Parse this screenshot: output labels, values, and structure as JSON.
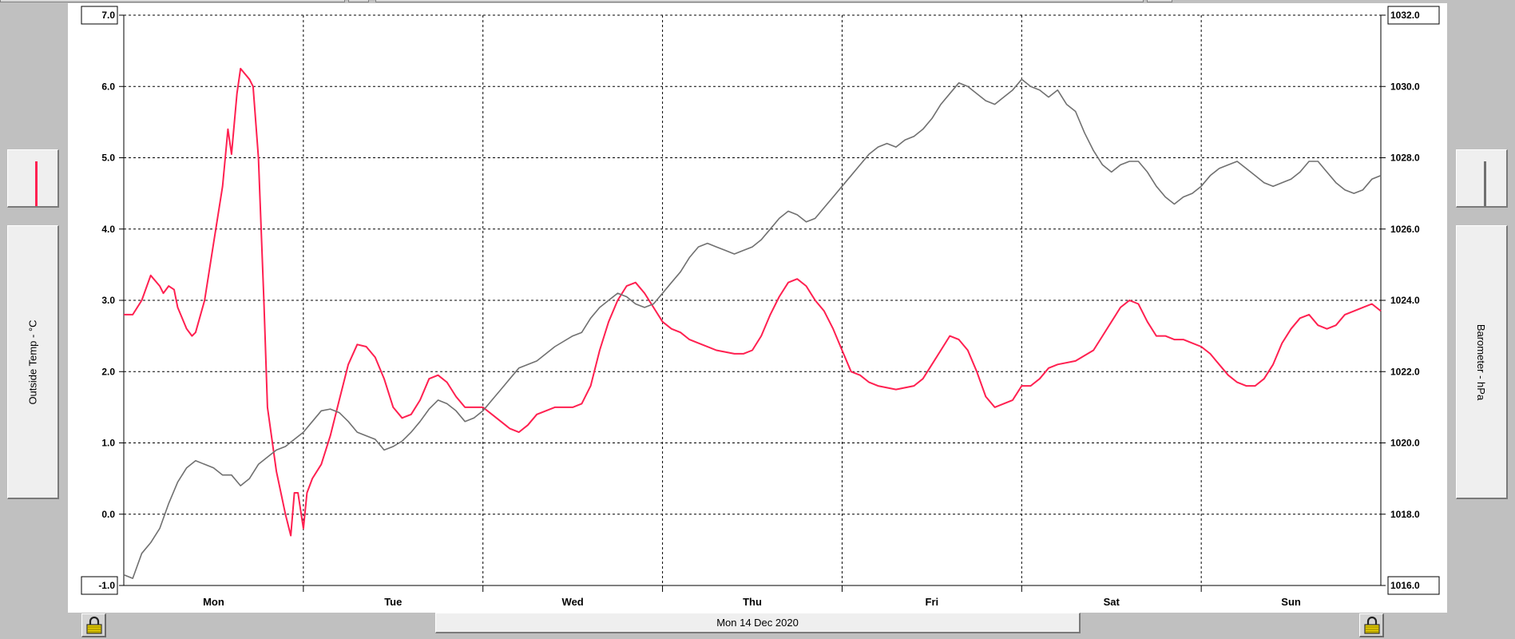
{
  "window": {
    "date_label": "Mon 14 Dec 2020"
  },
  "left_axis": {
    "label": "Outside Temp - °C",
    "ticks": [
      "-1.0",
      "0.0",
      "1.0",
      "2.0",
      "3.0",
      "4.0",
      "5.0",
      "6.0",
      "7.0"
    ]
  },
  "right_axis": {
    "label": "Barometer - hPa",
    "ticks": [
      "1016.0",
      "1018.0",
      "1020.0",
      "1022.0",
      "1024.0",
      "1026.0",
      "1028.0",
      "1030.0",
      "1032.0"
    ]
  },
  "colors": {
    "temp": "#ff2050",
    "barometer": "#707070",
    "grid": "#000000",
    "panel_bg": "#c0c0c0"
  },
  "icons": {
    "lock_left": "lock-icon",
    "lock_right": "lock-icon"
  },
  "chart_data": {
    "type": "line",
    "categories": [
      "Mon",
      "Tue",
      "Wed",
      "Thu",
      "Fri",
      "Sat",
      "Sun"
    ],
    "x_unit": "day",
    "xlim": [
      0,
      7
    ],
    "grid": true,
    "y_left": {
      "label": "Outside Temp - °C",
      "ylim": [
        -1.0,
        7.0
      ]
    },
    "y_right": {
      "label": "Barometer - hPa",
      "ylim": [
        1016.0,
        1032.0
      ]
    },
    "series": [
      {
        "name": "Outside Temp - °C",
        "axis": "left",
        "color": "#ff2050",
        "points": [
          [
            0,
            2.8
          ],
          [
            0.05,
            2.8
          ],
          [
            0.1,
            3.0
          ],
          [
            0.15,
            3.35
          ],
          [
            0.2,
            3.2
          ],
          [
            0.22,
            3.1
          ],
          [
            0.25,
            3.2
          ],
          [
            0.28,
            3.15
          ],
          [
            0.3,
            2.9
          ],
          [
            0.35,
            2.6
          ],
          [
            0.38,
            2.5
          ],
          [
            0.4,
            2.55
          ],
          [
            0.45,
            3.0
          ],
          [
            0.5,
            3.8
          ],
          [
            0.55,
            4.6
          ],
          [
            0.58,
            5.4
          ],
          [
            0.6,
            5.05
          ],
          [
            0.63,
            5.9
          ],
          [
            0.65,
            6.25
          ],
          [
            0.7,
            6.1
          ],
          [
            0.72,
            6.0
          ],
          [
            0.75,
            5.0
          ],
          [
            0.78,
            3.0
          ],
          [
            0.8,
            1.5
          ],
          [
            0.85,
            0.6
          ],
          [
            0.9,
            0.0
          ],
          [
            0.93,
            -0.3
          ],
          [
            0.95,
            0.3
          ],
          [
            0.97,
            0.3
          ],
          [
            1.0,
            -0.2
          ],
          [
            1.02,
            0.3
          ],
          [
            1.05,
            0.5
          ],
          [
            1.1,
            0.7
          ],
          [
            1.15,
            1.1
          ],
          [
            1.2,
            1.6
          ],
          [
            1.25,
            2.1
          ],
          [
            1.3,
            2.38
          ],
          [
            1.35,
            2.35
          ],
          [
            1.4,
            2.2
          ],
          [
            1.45,
            1.9
          ],
          [
            1.5,
            1.5
          ],
          [
            1.55,
            1.35
          ],
          [
            1.6,
            1.4
          ],
          [
            1.65,
            1.6
          ],
          [
            1.7,
            1.9
          ],
          [
            1.75,
            1.95
          ],
          [
            1.8,
            1.85
          ],
          [
            1.85,
            1.65
          ],
          [
            1.9,
            1.5
          ],
          [
            1.95,
            1.5
          ],
          [
            2.0,
            1.5
          ],
          [
            2.05,
            1.4
          ],
          [
            2.1,
            1.3
          ],
          [
            2.15,
            1.2
          ],
          [
            2.2,
            1.15
          ],
          [
            2.25,
            1.25
          ],
          [
            2.3,
            1.4
          ],
          [
            2.4,
            1.5
          ],
          [
            2.5,
            1.5
          ],
          [
            2.55,
            1.55
          ],
          [
            2.6,
            1.8
          ],
          [
            2.65,
            2.3
          ],
          [
            2.7,
            2.7
          ],
          [
            2.75,
            3.0
          ],
          [
            2.8,
            3.2
          ],
          [
            2.85,
            3.25
          ],
          [
            2.9,
            3.1
          ],
          [
            2.95,
            2.9
          ],
          [
            3.0,
            2.7
          ],
          [
            3.05,
            2.6
          ],
          [
            3.1,
            2.55
          ],
          [
            3.15,
            2.45
          ],
          [
            3.2,
            2.4
          ],
          [
            3.3,
            2.3
          ],
          [
            3.4,
            2.25
          ],
          [
            3.45,
            2.25
          ],
          [
            3.5,
            2.3
          ],
          [
            3.55,
            2.5
          ],
          [
            3.6,
            2.8
          ],
          [
            3.65,
            3.05
          ],
          [
            3.7,
            3.25
          ],
          [
            3.75,
            3.3
          ],
          [
            3.8,
            3.2
          ],
          [
            3.85,
            3.0
          ],
          [
            3.9,
            2.85
          ],
          [
            3.95,
            2.6
          ],
          [
            4.0,
            2.3
          ],
          [
            4.05,
            2.0
          ],
          [
            4.1,
            1.95
          ],
          [
            4.15,
            1.85
          ],
          [
            4.2,
            1.8
          ],
          [
            4.3,
            1.75
          ],
          [
            4.4,
            1.8
          ],
          [
            4.45,
            1.9
          ],
          [
            4.5,
            2.1
          ],
          [
            4.55,
            2.3
          ],
          [
            4.6,
            2.5
          ],
          [
            4.65,
            2.45
          ],
          [
            4.7,
            2.3
          ],
          [
            4.75,
            2.0
          ],
          [
            4.8,
            1.65
          ],
          [
            4.85,
            1.5
          ],
          [
            4.9,
            1.55
          ],
          [
            4.95,
            1.6
          ],
          [
            5.0,
            1.8
          ],
          [
            5.05,
            1.8
          ],
          [
            5.1,
            1.9
          ],
          [
            5.15,
            2.05
          ],
          [
            5.2,
            2.1
          ],
          [
            5.3,
            2.15
          ],
          [
            5.4,
            2.3
          ],
          [
            5.45,
            2.5
          ],
          [
            5.5,
            2.7
          ],
          [
            5.55,
            2.9
          ],
          [
            5.6,
            3.0
          ],
          [
            5.65,
            2.95
          ],
          [
            5.7,
            2.7
          ],
          [
            5.75,
            2.5
          ],
          [
            5.8,
            2.5
          ],
          [
            5.85,
            2.45
          ],
          [
            5.9,
            2.45
          ],
          [
            5.95,
            2.4
          ],
          [
            6.0,
            2.35
          ],
          [
            6.05,
            2.25
          ],
          [
            6.1,
            2.1
          ],
          [
            6.15,
            1.95
          ],
          [
            6.2,
            1.85
          ],
          [
            6.25,
            1.8
          ],
          [
            6.3,
            1.8
          ],
          [
            6.35,
            1.9
          ],
          [
            6.4,
            2.1
          ],
          [
            6.45,
            2.4
          ],
          [
            6.5,
            2.6
          ],
          [
            6.55,
            2.75
          ],
          [
            6.6,
            2.8
          ],
          [
            6.65,
            2.65
          ],
          [
            6.7,
            2.6
          ],
          [
            6.75,
            2.65
          ],
          [
            6.8,
            2.8
          ],
          [
            6.85,
            2.85
          ],
          [
            6.9,
            2.9
          ],
          [
            6.95,
            2.95
          ],
          [
            7.0,
            2.85
          ]
        ]
      },
      {
        "name": "Barometer - hPa",
        "axis": "right",
        "color": "#707070",
        "points": [
          [
            0,
            1016.3
          ],
          [
            0.05,
            1016.2
          ],
          [
            0.1,
            1016.9
          ],
          [
            0.15,
            1017.2
          ],
          [
            0.2,
            1017.6
          ],
          [
            0.25,
            1018.3
          ],
          [
            0.3,
            1018.9
          ],
          [
            0.35,
            1019.3
          ],
          [
            0.4,
            1019.5
          ],
          [
            0.45,
            1019.4
          ],
          [
            0.5,
            1019.3
          ],
          [
            0.55,
            1019.1
          ],
          [
            0.6,
            1019.1
          ],
          [
            0.65,
            1018.8
          ],
          [
            0.7,
            1019.0
          ],
          [
            0.75,
            1019.4
          ],
          [
            0.8,
            1019.6
          ],
          [
            0.85,
            1019.8
          ],
          [
            0.9,
            1019.9
          ],
          [
            0.95,
            1020.1
          ],
          [
            1.0,
            1020.3
          ],
          [
            1.05,
            1020.6
          ],
          [
            1.1,
            1020.9
          ],
          [
            1.15,
            1020.95
          ],
          [
            1.2,
            1020.85
          ],
          [
            1.25,
            1020.6
          ],
          [
            1.3,
            1020.3
          ],
          [
            1.35,
            1020.2
          ],
          [
            1.4,
            1020.1
          ],
          [
            1.45,
            1019.8
          ],
          [
            1.5,
            1019.9
          ],
          [
            1.55,
            1020.05
          ],
          [
            1.6,
            1020.3
          ],
          [
            1.65,
            1020.6
          ],
          [
            1.7,
            1020.95
          ],
          [
            1.75,
            1021.2
          ],
          [
            1.8,
            1021.1
          ],
          [
            1.85,
            1020.9
          ],
          [
            1.9,
            1020.6
          ],
          [
            1.95,
            1020.7
          ],
          [
            2.0,
            1020.9
          ],
          [
            2.05,
            1021.2
          ],
          [
            2.1,
            1021.5
          ],
          [
            2.15,
            1021.8
          ],
          [
            2.2,
            1022.1
          ],
          [
            2.3,
            1022.3
          ],
          [
            2.4,
            1022.7
          ],
          [
            2.5,
            1023.0
          ],
          [
            2.55,
            1023.1
          ],
          [
            2.6,
            1023.5
          ],
          [
            2.65,
            1023.8
          ],
          [
            2.7,
            1024.0
          ],
          [
            2.75,
            1024.2
          ],
          [
            2.8,
            1024.1
          ],
          [
            2.85,
            1023.9
          ],
          [
            2.9,
            1023.8
          ],
          [
            2.95,
            1023.9
          ],
          [
            3.0,
            1024.2
          ],
          [
            3.05,
            1024.5
          ],
          [
            3.1,
            1024.8
          ],
          [
            3.15,
            1025.2
          ],
          [
            3.2,
            1025.5
          ],
          [
            3.25,
            1025.6
          ],
          [
            3.3,
            1025.5
          ],
          [
            3.35,
            1025.4
          ],
          [
            3.4,
            1025.3
          ],
          [
            3.45,
            1025.4
          ],
          [
            3.5,
            1025.5
          ],
          [
            3.55,
            1025.7
          ],
          [
            3.6,
            1026.0
          ],
          [
            3.65,
            1026.3
          ],
          [
            3.7,
            1026.5
          ],
          [
            3.75,
            1026.4
          ],
          [
            3.8,
            1026.2
          ],
          [
            3.85,
            1026.3
          ],
          [
            3.9,
            1026.6
          ],
          [
            3.95,
            1026.9
          ],
          [
            4.0,
            1027.2
          ],
          [
            4.05,
            1027.5
          ],
          [
            4.1,
            1027.8
          ],
          [
            4.15,
            1028.1
          ],
          [
            4.2,
            1028.3
          ],
          [
            4.25,
            1028.4
          ],
          [
            4.3,
            1028.3
          ],
          [
            4.35,
            1028.5
          ],
          [
            4.4,
            1028.6
          ],
          [
            4.45,
            1028.8
          ],
          [
            4.5,
            1029.1
          ],
          [
            4.55,
            1029.5
          ],
          [
            4.6,
            1029.8
          ],
          [
            4.65,
            1030.1
          ],
          [
            4.7,
            1030.0
          ],
          [
            4.75,
            1029.8
          ],
          [
            4.8,
            1029.6
          ],
          [
            4.85,
            1029.5
          ],
          [
            4.9,
            1029.7
          ],
          [
            4.95,
            1029.9
          ],
          [
            5.0,
            1030.2
          ],
          [
            5.05,
            1030.0
          ],
          [
            5.1,
            1029.9
          ],
          [
            5.15,
            1029.7
          ],
          [
            5.2,
            1029.9
          ],
          [
            5.25,
            1029.5
          ],
          [
            5.3,
            1029.3
          ],
          [
            5.35,
            1028.7
          ],
          [
            5.4,
            1028.2
          ],
          [
            5.45,
            1027.8
          ],
          [
            5.5,
            1027.6
          ],
          [
            5.55,
            1027.8
          ],
          [
            5.6,
            1027.9
          ],
          [
            5.65,
            1027.9
          ],
          [
            5.7,
            1027.6
          ],
          [
            5.75,
            1027.2
          ],
          [
            5.8,
            1026.9
          ],
          [
            5.85,
            1026.7
          ],
          [
            5.9,
            1026.9
          ],
          [
            5.95,
            1027.0
          ],
          [
            6.0,
            1027.2
          ],
          [
            6.05,
            1027.5
          ],
          [
            6.1,
            1027.7
          ],
          [
            6.15,
            1027.8
          ],
          [
            6.2,
            1027.9
          ],
          [
            6.25,
            1027.7
          ],
          [
            6.3,
            1027.5
          ],
          [
            6.35,
            1027.3
          ],
          [
            6.4,
            1027.2
          ],
          [
            6.45,
            1027.3
          ],
          [
            6.5,
            1027.4
          ],
          [
            6.55,
            1027.6
          ],
          [
            6.6,
            1027.9
          ],
          [
            6.65,
            1027.9
          ],
          [
            6.7,
            1027.6
          ],
          [
            6.75,
            1027.3
          ],
          [
            6.8,
            1027.1
          ],
          [
            6.85,
            1027.0
          ],
          [
            6.9,
            1027.1
          ],
          [
            6.95,
            1027.4
          ],
          [
            7.0,
            1027.5
          ]
        ]
      }
    ]
  }
}
